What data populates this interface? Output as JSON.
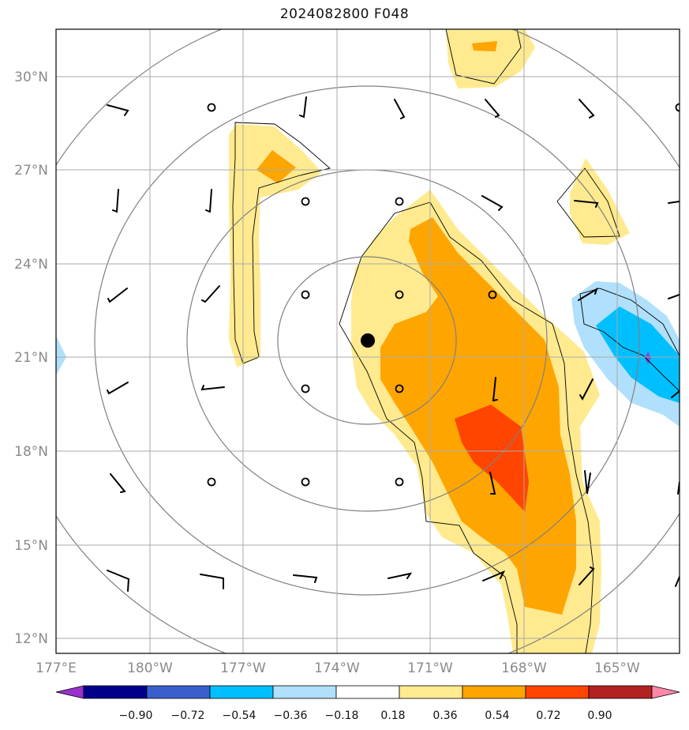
{
  "title": "2024082800 F048",
  "lat_labels": [
    "30°N",
    "27°N",
    "24°N",
    "21°N",
    "18°N",
    "15°N",
    "12°N"
  ],
  "lon_labels": [
    "177°E",
    "180°W",
    "177°W",
    "174°W",
    "171°W",
    "168°W",
    "165°W"
  ],
  "colorbar": {
    "ticks": [
      "−0.90",
      "−0.72",
      "−0.54",
      "−0.36",
      "−0.18",
      "0.18",
      "0.36",
      "0.54",
      "0.72",
      "0.90"
    ],
    "colors": [
      "#9932cc",
      "#00008b",
      "#3a5fcd",
      "#00bfff",
      "#b0e0fb",
      "#ffffff",
      "#ffea8f",
      "#ffa500",
      "#ff4500",
      "#b22222",
      "#ff88aa"
    ]
  },
  "legend_colors": {
    "pos1": "#ffea8f",
    "pos2": "#ffa500",
    "pos3": "#ff4500",
    "neg1": "#b0e0fb",
    "neg2": "#00bfff",
    "neg3": "#7b4fd0"
  },
  "center_marker": "storm-center"
}
